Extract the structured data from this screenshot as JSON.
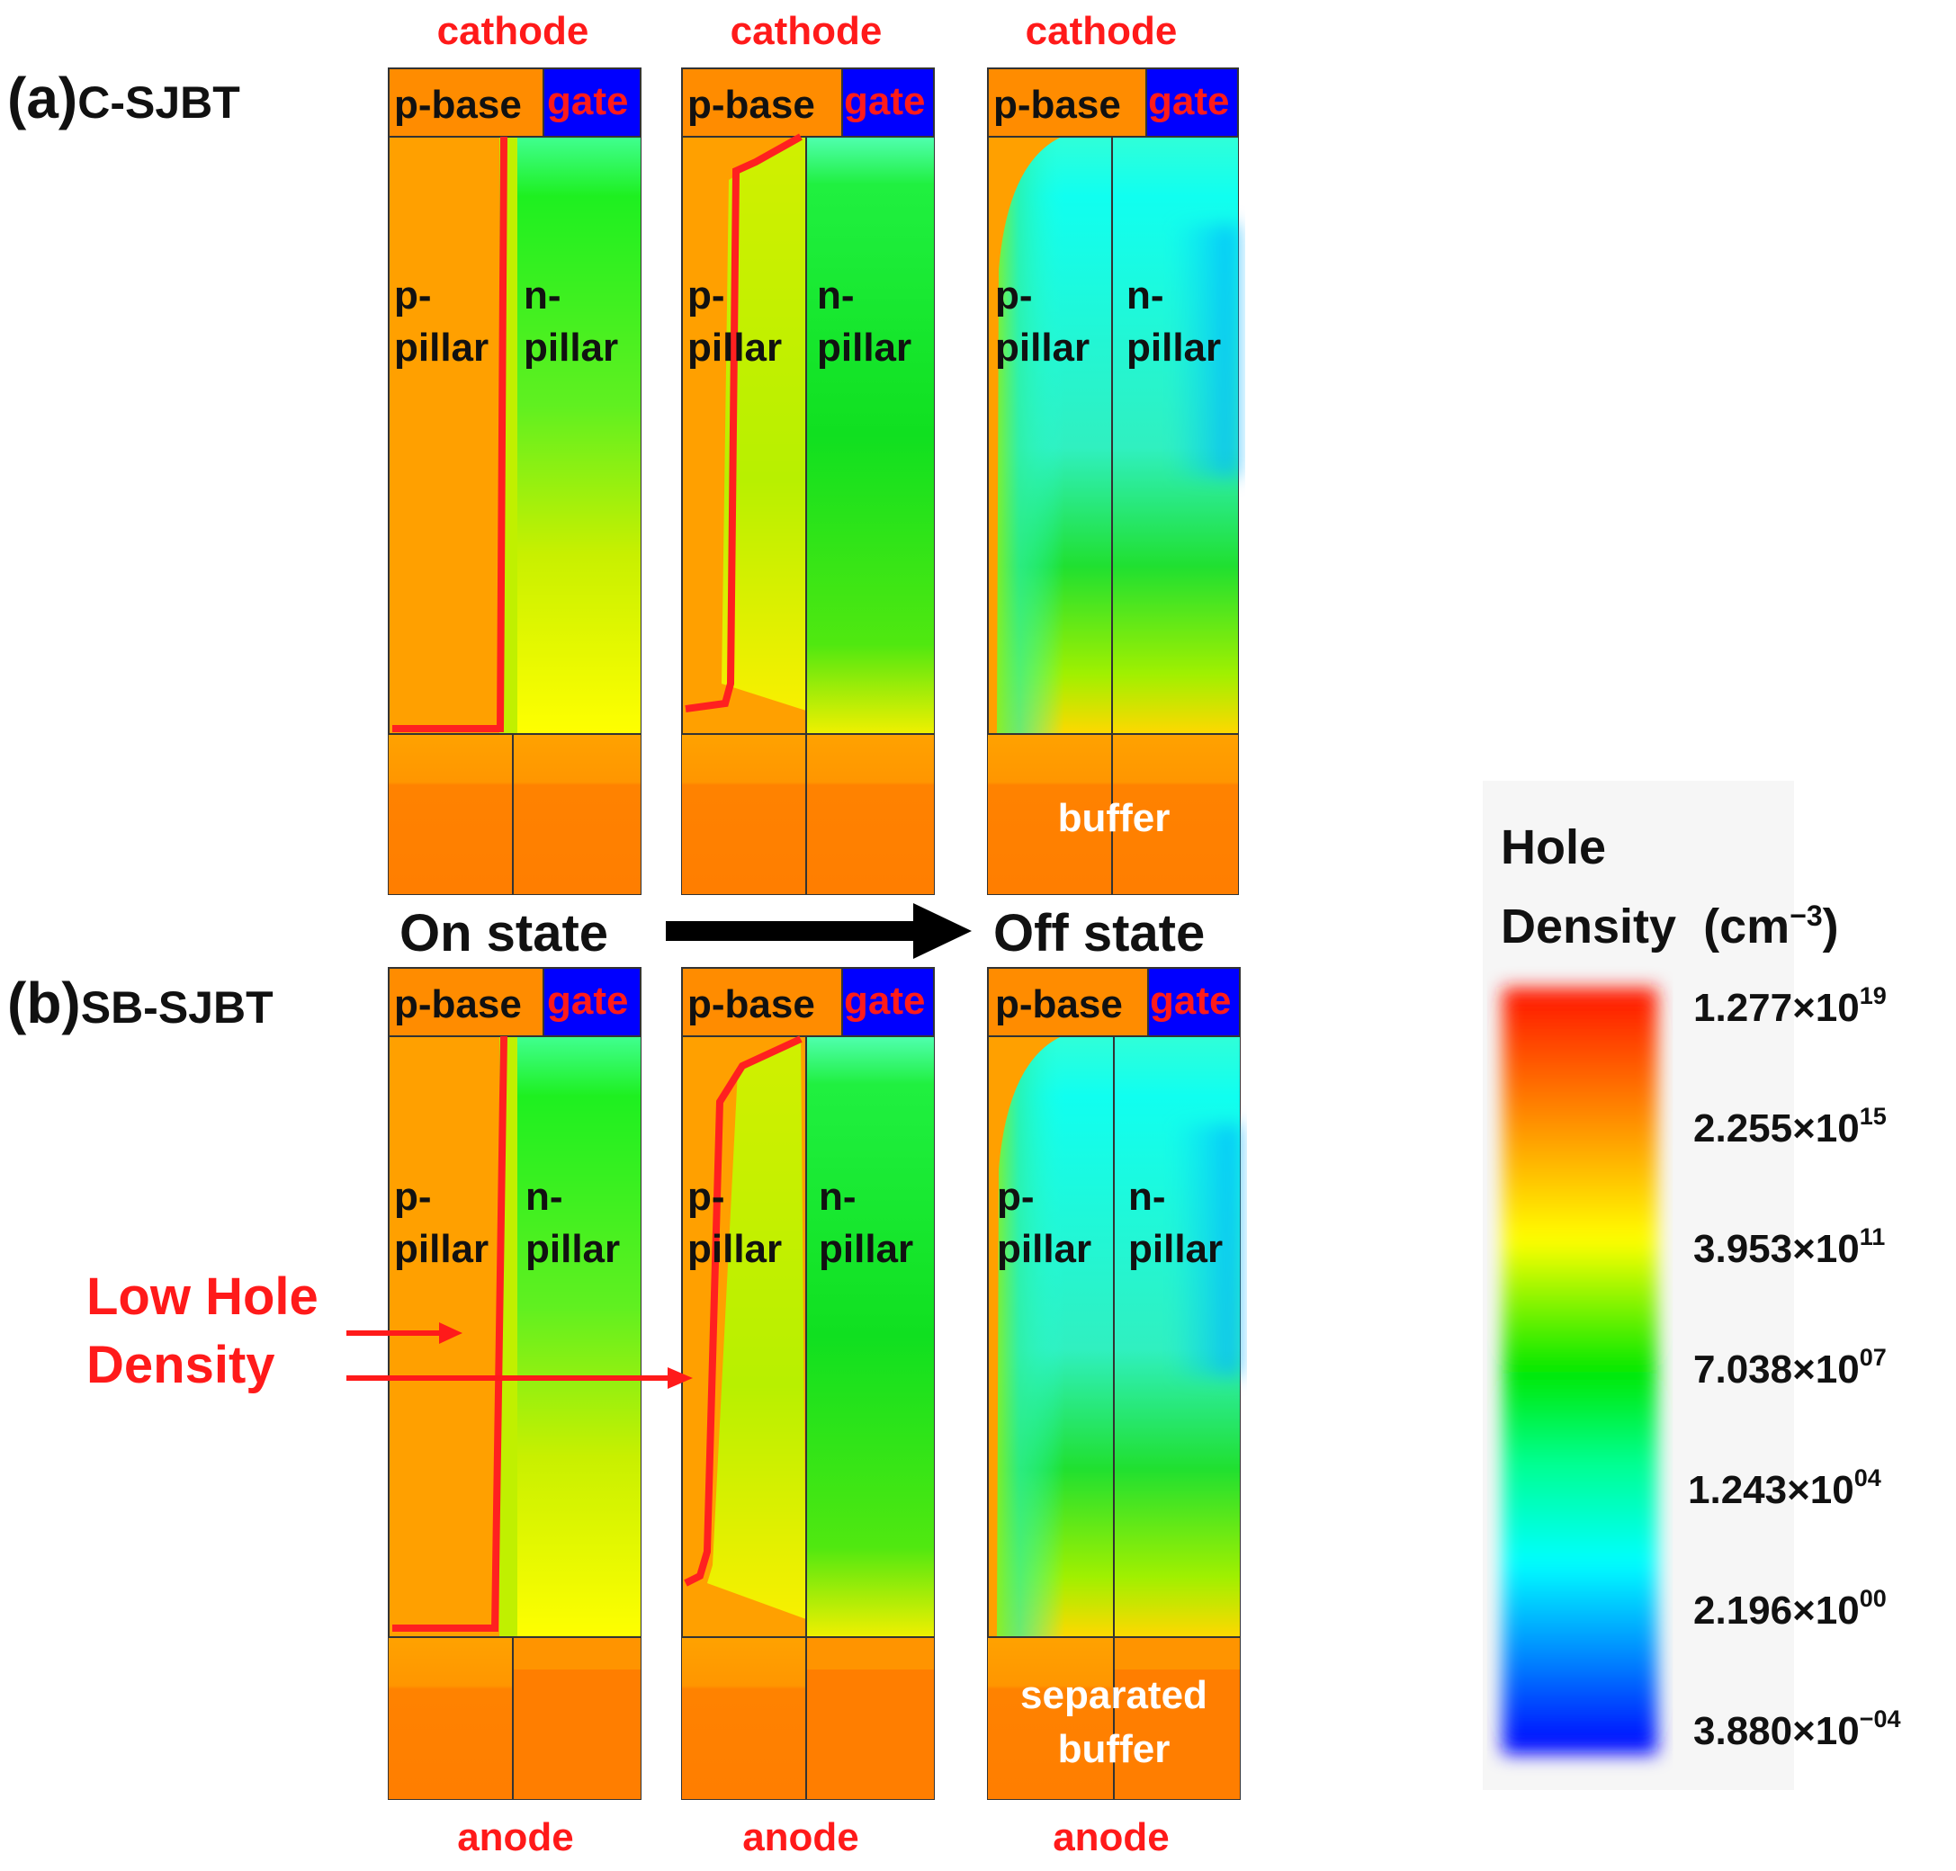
{
  "panels": {
    "a": {
      "letter": "(a)",
      "name": "C-SJBT"
    },
    "b": {
      "letter": "(b)",
      "name": "SB-SJBT"
    }
  },
  "labels": {
    "cathode": "cathode",
    "anode": "anode",
    "p_base": "p-base",
    "gate": "gate",
    "p_pillar_1": "p-",
    "p_pillar_2": "pillar",
    "n_pillar_1": "n-",
    "n_pillar_2": "pillar",
    "buffer": "buffer",
    "separated_buffer_1": "separated",
    "separated_buffer_2": "buffer"
  },
  "states": {
    "on": "On state",
    "off": "Off state"
  },
  "annotation": {
    "line1": "Low Hole",
    "line2": "Density"
  },
  "legend": {
    "title_line1": "Hole",
    "title_line2": "Density",
    "unit": "(cm",
    "unit_exp": "−3",
    "unit_close": ")",
    "ticks": [
      {
        "mant": "1.277×10",
        "exp": "19"
      },
      {
        "mant": "2.255×10",
        "exp": "15"
      },
      {
        "mant": "3.953×10",
        "exp": "11"
      },
      {
        "mant": "7.038×10",
        "exp": "07"
      },
      {
        "mant": "1.243×10",
        "exp": "04"
      },
      {
        "mant": "2.196×10",
        "exp": "00"
      },
      {
        "mant": "3.880×10",
        "exp": "−04"
      }
    ],
    "colors": [
      "#ff1a00",
      "#ff8c00",
      "#ffff00",
      "#00e000",
      "#00ffff",
      "#0000ff"
    ]
  },
  "colors": {
    "p_region": "#ffa000",
    "buffer_dark": "#ff7f00",
    "gate": "#0000ff",
    "boundary": "#ff2020",
    "arrow": "#000000"
  }
}
